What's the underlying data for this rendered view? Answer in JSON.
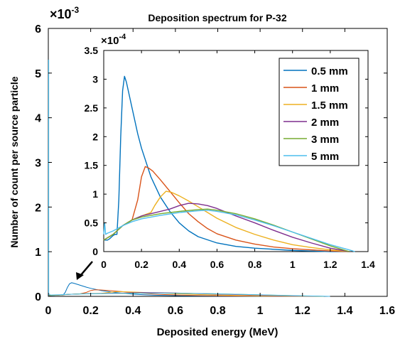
{
  "chart_data": {
    "type": "line",
    "title": "Deposition spectrum for P-32",
    "xlabel": "Deposited energy (MeV)",
    "ylabel": "Number of count per source particle",
    "main": {
      "xlim": [
        0,
        1.6
      ],
      "ylim": [
        0,
        6
      ],
      "y_scale_label": "×10",
      "y_scale_exp": "-3",
      "x_ticks": [
        "0",
        "0.2",
        "0.4",
        "0.6",
        "0.8",
        "1",
        "1.2",
        "1.4",
        "1.6"
      ],
      "y_ticks": [
        "0",
        "1",
        "2",
        "3",
        "4",
        "5",
        "6"
      ],
      "series_scale": 0.1,
      "left_edge_spike": 5.3
    },
    "inset": {
      "xlim": [
        0,
        1.4
      ],
      "ylim": [
        0,
        3.5
      ],
      "y_scale_label": "×10",
      "y_scale_exp": "-4",
      "x_ticks": [
        "0",
        "0.2",
        "0.4",
        "0.6",
        "0.8",
        "1",
        "1.2",
        "1.4"
      ],
      "y_ticks": [
        "0",
        "0.5",
        "1",
        "1.5",
        "2",
        "2.5",
        "3",
        "3.5"
      ],
      "grid": false
    },
    "legend": {
      "position": "top-right"
    },
    "series": [
      {
        "name": "0.5 mm",
        "color": "#0072BD",
        "x": [
          0,
          0.01,
          0.02,
          0.03,
          0.04,
          0.05,
          0.06,
          0.07,
          0.08,
          0.09,
          0.1,
          0.11,
          0.12,
          0.14,
          0.16,
          0.18,
          0.2,
          0.25,
          0.3,
          0.35,
          0.4,
          0.45,
          0.5,
          0.6,
          0.7,
          0.8,
          0.9,
          1.0,
          1.1,
          1.2,
          1.3
        ],
        "y": [
          0.2,
          0.2,
          0.2,
          0.22,
          0.25,
          0.28,
          0.3,
          0.3,
          0.9,
          2.0,
          2.8,
          3.05,
          2.95,
          2.65,
          2.35,
          2.05,
          1.8,
          1.3,
          0.95,
          0.7,
          0.5,
          0.36,
          0.26,
          0.15,
          0.09,
          0.06,
          0.04,
          0.02,
          0.01,
          0.0,
          0.0
        ]
      },
      {
        "name": "1 mm",
        "color": "#D95319",
        "x": [
          0,
          0.05,
          0.1,
          0.15,
          0.18,
          0.2,
          0.22,
          0.24,
          0.26,
          0.3,
          0.35,
          0.4,
          0.45,
          0.5,
          0.55,
          0.6,
          0.7,
          0.8,
          0.9,
          1.0,
          1.1,
          1.2,
          1.3
        ],
        "y": [
          0.2,
          0.3,
          0.45,
          0.55,
          0.9,
          1.3,
          1.48,
          1.45,
          1.4,
          1.25,
          1.05,
          0.85,
          0.66,
          0.52,
          0.4,
          0.31,
          0.2,
          0.13,
          0.08,
          0.05,
          0.03,
          0.01,
          0.0
        ]
      },
      {
        "name": "1.5 mm",
        "color": "#EDB120",
        "x": [
          0,
          0.05,
          0.1,
          0.15,
          0.2,
          0.25,
          0.27,
          0.3,
          0.33,
          0.36,
          0.4,
          0.45,
          0.5,
          0.55,
          0.6,
          0.7,
          0.8,
          0.9,
          1.0,
          1.1,
          1.2,
          1.3
        ],
        "y": [
          0.2,
          0.3,
          0.45,
          0.55,
          0.62,
          0.68,
          0.8,
          0.95,
          1.05,
          1.03,
          0.97,
          0.88,
          0.78,
          0.68,
          0.58,
          0.42,
          0.3,
          0.2,
          0.12,
          0.07,
          0.03,
          0.0
        ]
      },
      {
        "name": "2 mm",
        "color": "#7E2F8E",
        "x": [
          0,
          0.05,
          0.1,
          0.15,
          0.2,
          0.25,
          0.3,
          0.35,
          0.4,
          0.45,
          0.5,
          0.55,
          0.6,
          0.7,
          0.8,
          0.9,
          1.0,
          1.1,
          1.2,
          1.3
        ],
        "y": [
          0.2,
          0.3,
          0.45,
          0.55,
          0.62,
          0.66,
          0.7,
          0.74,
          0.8,
          0.84,
          0.83,
          0.8,
          0.75,
          0.62,
          0.5,
          0.37,
          0.25,
          0.15,
          0.06,
          0.0
        ]
      },
      {
        "name": "3 mm",
        "color": "#77AC30",
        "x": [
          0,
          0.05,
          0.1,
          0.15,
          0.2,
          0.3,
          0.4,
          0.5,
          0.55,
          0.6,
          0.7,
          0.8,
          0.9,
          1.0,
          1.1,
          1.2,
          1.3
        ],
        "y": [
          0.2,
          0.3,
          0.45,
          0.55,
          0.6,
          0.66,
          0.7,
          0.73,
          0.74,
          0.72,
          0.66,
          0.57,
          0.46,
          0.34,
          0.22,
          0.1,
          0.0
        ]
      },
      {
        "name": "5 mm",
        "color": "#4DBEEE",
        "x": [
          0,
          0.005,
          0.01,
          0.02,
          0.05,
          0.1,
          0.15,
          0.2,
          0.3,
          0.4,
          0.5,
          0.55,
          0.6,
          0.7,
          0.8,
          0.9,
          1.0,
          1.1,
          1.2,
          1.3,
          1.33
        ],
        "y": [
          0.3,
          0.5,
          0.3,
          0.32,
          0.36,
          0.45,
          0.52,
          0.57,
          0.63,
          0.68,
          0.71,
          0.72,
          0.7,
          0.64,
          0.55,
          0.45,
          0.34,
          0.23,
          0.12,
          0.03,
          0.0
        ]
      }
    ]
  }
}
